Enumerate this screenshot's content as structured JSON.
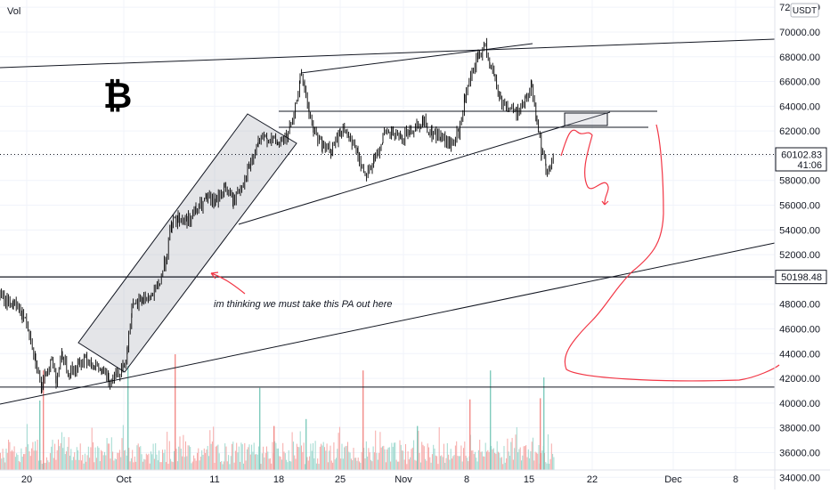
{
  "header": {
    "vol_label": "Vol",
    "currency_label": "USDT"
  },
  "logo": {
    "name": "bitcoin-logo",
    "glyph": "₿"
  },
  "annotation": {
    "text": "im thinking we must take this PA out here"
  },
  "chart_data": {
    "type": "candlestick",
    "title": "",
    "xlabel": "",
    "ylabel": "",
    "ylim": [
      33300,
      72300
    ],
    "y_ticks": [
      34000,
      36000,
      38000,
      40000,
      42000,
      44000,
      46000,
      48000,
      50000,
      52000,
      54000,
      56000,
      58000,
      60000,
      62000,
      64000,
      66000,
      68000,
      70000,
      72000
    ],
    "y_tick_labels": [
      "34000.00",
      "36000.00",
      "38000.00",
      "40000.00",
      "42000.00",
      "44000.00",
      "46000.00",
      "48000.00",
      "50000.00",
      "52000.00",
      "54000.00",
      "56000.00",
      "58000.00",
      "60000.00",
      "62000.00",
      "64000.00",
      "66000.00",
      "68000.00",
      "70000.00",
      "72000.00"
    ],
    "x_tick_labels": [
      "20",
      "Oct",
      "11",
      "18",
      "25",
      "Nov",
      "8",
      "15",
      "22",
      "Dec",
      "8"
    ],
    "price_path": [
      [
        0,
        48500
      ],
      [
        15,
        48000
      ],
      [
        25,
        47200
      ],
      [
        33,
        45800
      ],
      [
        40,
        43500
      ],
      [
        47,
        41000
      ],
      [
        52,
        42500
      ],
      [
        58,
        43500
      ],
      [
        63,
        42000
      ],
      [
        70,
        43800
      ],
      [
        78,
        42500
      ],
      [
        88,
        43000
      ],
      [
        96,
        43800
      ],
      [
        106,
        43000
      ],
      [
        115,
        42500
      ],
      [
        122,
        41800
      ],
      [
        130,
        42500
      ],
      [
        138,
        42800
      ],
      [
        143,
        44500
      ],
      [
        148,
        47500
      ],
      [
        160,
        48500
      ],
      [
        170,
        48600
      ],
      [
        178,
        49500
      ],
      [
        186,
        51500
      ],
      [
        193,
        54500
      ],
      [
        200,
        55000
      ],
      [
        210,
        54800
      ],
      [
        220,
        55500
      ],
      [
        232,
        56500
      ],
      [
        242,
        56200
      ],
      [
        252,
        57500
      ],
      [
        262,
        56300
      ],
      [
        270,
        57500
      ],
      [
        280,
        59000
      ],
      [
        290,
        61000
      ],
      [
        300,
        61500
      ],
      [
        312,
        61000
      ],
      [
        322,
        61500
      ],
      [
        330,
        63000
      ],
      [
        337,
        66500
      ],
      [
        342,
        65500
      ],
      [
        347,
        63500
      ],
      [
        352,
        62000
      ],
      [
        362,
        60800
      ],
      [
        372,
        60300
      ],
      [
        382,
        62000
      ],
      [
        392,
        61800
      ],
      [
        402,
        60000
      ],
      [
        410,
        58500
      ],
      [
        420,
        59500
      ],
      [
        430,
        61500
      ],
      [
        440,
        61800
      ],
      [
        450,
        61300
      ],
      [
        460,
        62000
      ],
      [
        468,
        62500
      ],
      [
        475,
        62800
      ],
      [
        485,
        61800
      ],
      [
        495,
        61500
      ],
      [
        505,
        60800
      ],
      [
        515,
        61800
      ],
      [
        522,
        64500
      ],
      [
        530,
        66500
      ],
      [
        537,
        68000
      ],
      [
        545,
        68800
      ],
      [
        550,
        67500
      ],
      [
        556,
        66000
      ],
      [
        562,
        64500
      ],
      [
        570,
        64000
      ],
      [
        580,
        63500
      ],
      [
        590,
        64500
      ],
      [
        597,
        65700
      ],
      [
        603,
        63000
      ],
      [
        608,
        60200
      ],
      [
        613,
        59200
      ],
      [
        618,
        59000
      ],
      [
        622,
        60100
      ]
    ],
    "volume": {
      "max_value": 10000,
      "spikes": [
        {
          "x": 44,
          "value": 6000
        },
        {
          "x": 48,
          "value": 8600
        },
        {
          "x": 143,
          "value": 9000
        },
        {
          "x": 196,
          "value": 10000
        },
        {
          "x": 291,
          "value": 7100
        },
        {
          "x": 307,
          "value": 3800
        },
        {
          "x": 343,
          "value": 4400
        },
        {
          "x": 407,
          "value": 8600
        },
        {
          "x": 468,
          "value": 3800
        },
        {
          "x": 527,
          "value": 6100
        },
        {
          "x": 550,
          "value": 8600
        },
        {
          "x": 606,
          "value": 6200
        },
        {
          "x": 610,
          "value": 8000
        }
      ]
    },
    "price_labels": [
      {
        "name": "current-price-label",
        "text": "60102.83",
        "sub": "41:06",
        "value": 60102.83,
        "color": "#131722"
      },
      {
        "name": "level-price-label",
        "text": "50198.48",
        "value": 50198.48,
        "color": "#131722"
      }
    ],
    "horizontal_levels": [
      60102.83,
      50198.48,
      41300
    ],
    "colors": {
      "up": "#26a69a",
      "down": "#ef5350",
      "candle": "#000000",
      "drawing": "#000000",
      "annotation": "#f23645",
      "grid": "#f0f3fa"
    }
  }
}
